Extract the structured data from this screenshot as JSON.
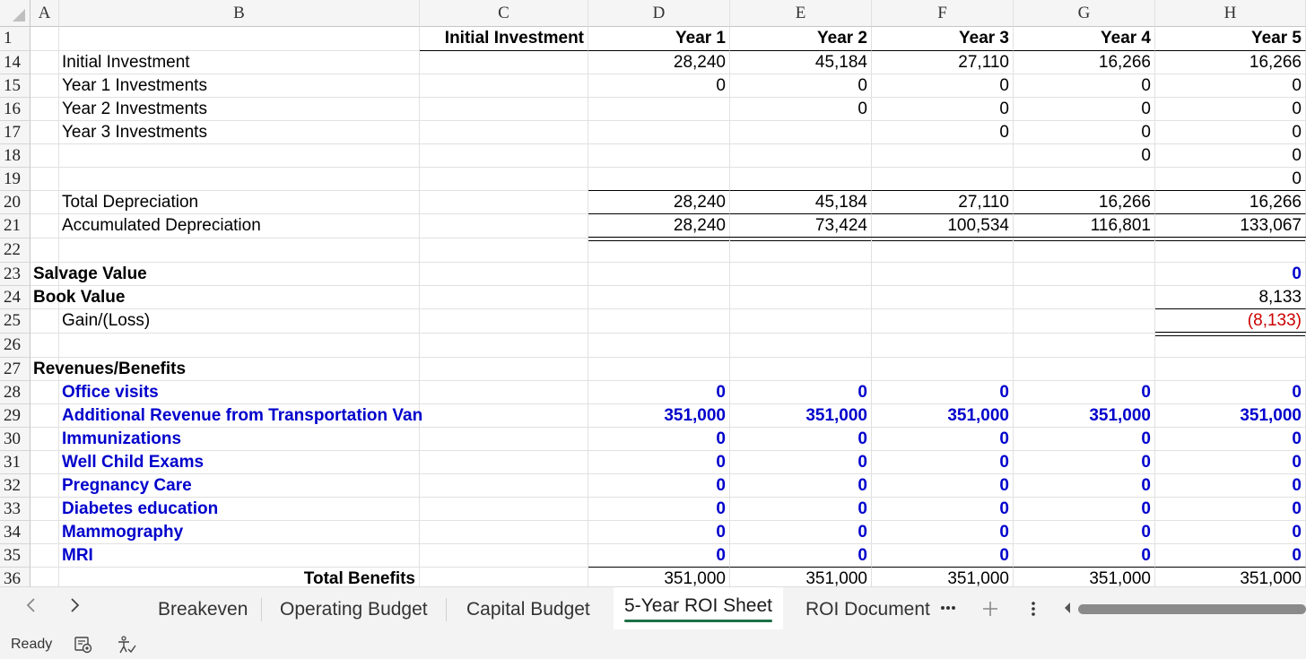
{
  "columns": [
    "A",
    "B",
    "C",
    "D",
    "E",
    "F",
    "G",
    "H"
  ],
  "header_row": {
    "row": "1",
    "C": "Initial Investment",
    "D": "Year 1",
    "E": "Year 2",
    "F": "Year 3",
    "G": "Year 4",
    "H": "Year 5"
  },
  "rows": [
    {
      "row": "14",
      "B": "Initial Investment",
      "D": "28,240",
      "E": "45,184",
      "F": "27,110",
      "G": "16,266",
      "H": "16,266"
    },
    {
      "row": "15",
      "B": "Year 1 Investments",
      "D": "0",
      "E": "0",
      "F": "0",
      "G": "0",
      "H": "0"
    },
    {
      "row": "16",
      "B": "Year 2 Investments",
      "D": "",
      "E": "0",
      "F": "0",
      "G": "0",
      "H": "0"
    },
    {
      "row": "17",
      "B": "Year 3 Investments",
      "D": "",
      "E": "",
      "F": "0",
      "G": "0",
      "H": "0"
    },
    {
      "row": "18",
      "B": "",
      "D": "",
      "E": "",
      "F": "",
      "G": "0",
      "H": "0"
    },
    {
      "row": "19",
      "B": "",
      "D": "",
      "E": "",
      "F": "",
      "G": "",
      "H": "0"
    },
    {
      "row": "20",
      "B": "Total Depreciation",
      "D": "28,240",
      "E": "45,184",
      "F": "27,110",
      "G": "16,266",
      "H": "16,266"
    },
    {
      "row": "21",
      "B": "Accumulated Depreciation",
      "D": "28,240",
      "E": "73,424",
      "F": "100,534",
      "G": "116,801",
      "H": "133,067"
    },
    {
      "row": "22",
      "B": "",
      "D": "",
      "E": "",
      "F": "",
      "G": "",
      "H": ""
    },
    {
      "row": "23",
      "A": "Salvage Value",
      "H": "0"
    },
    {
      "row": "24",
      "A": "Book Value",
      "H": "8,133"
    },
    {
      "row": "25",
      "B": "Gain/(Loss)",
      "H": "(8,133)"
    },
    {
      "row": "26",
      "B": "",
      "H": ""
    },
    {
      "row": "27",
      "A": "Revenues/Benefits"
    },
    {
      "row": "28",
      "B": "Office visits",
      "D": "0",
      "E": "0",
      "F": "0",
      "G": "0",
      "H": "0"
    },
    {
      "row": "29",
      "B": "Additional Revenue from Transportation Van",
      "D": "351,000",
      "E": "351,000",
      "F": "351,000",
      "G": "351,000",
      "H": "351,000"
    },
    {
      "row": "30",
      "B": "Immunizations",
      "D": "0",
      "E": "0",
      "F": "0",
      "G": "0",
      "H": "0"
    },
    {
      "row": "31",
      "B": "Well Child Exams",
      "D": "0",
      "E": "0",
      "F": "0",
      "G": "0",
      "H": "0"
    },
    {
      "row": "32",
      "B": "Pregnancy Care",
      "D": "0",
      "E": "0",
      "F": "0",
      "G": "0",
      "H": "0"
    },
    {
      "row": "33",
      "B": "Diabetes education",
      "D": "0",
      "E": "0",
      "F": "0",
      "G": "0",
      "H": "0"
    },
    {
      "row": "34",
      "B": "Mammography",
      "D": "0",
      "E": "0",
      "F": "0",
      "G": "0",
      "H": "0"
    },
    {
      "row": "35",
      "B": "MRI",
      "D": "0",
      "E": "0",
      "F": "0",
      "G": "0",
      "H": "0"
    },
    {
      "row": "36",
      "B": "Total Benefits",
      "D": "351,000",
      "E": "351,000",
      "F": "351,000",
      "G": "351,000",
      "H": "351,000"
    }
  ],
  "tabs": {
    "t1": "Breakeven",
    "t2": "Operating Budget",
    "t3": "Capital Budget",
    "t4": "5-Year ROI Sheet",
    "t5": "ROI Document",
    "active": "5-Year ROI Sheet"
  },
  "status": {
    "ready": "Ready"
  },
  "colors": {
    "accent_green": "#1e7145",
    "input_blue": "#0000cc",
    "negative_red": "#cc0000"
  }
}
